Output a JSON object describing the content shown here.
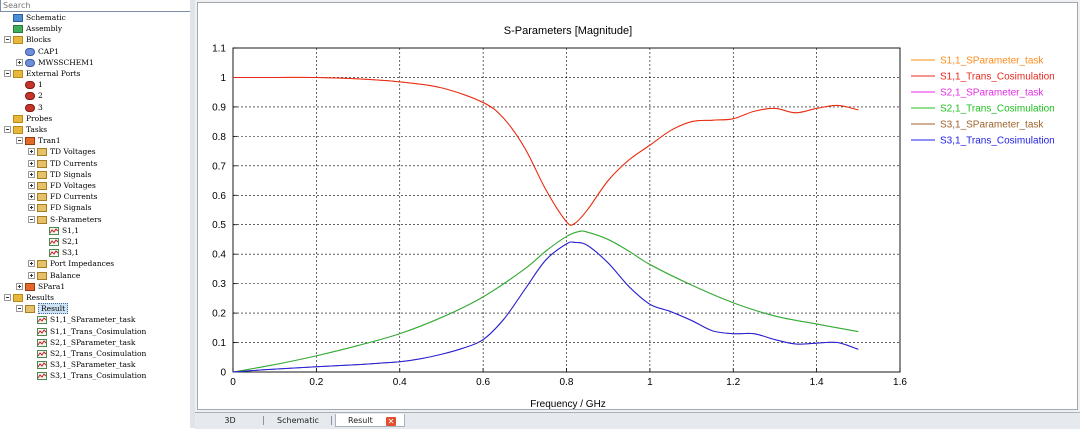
{
  "search": {
    "placeholder": "Search"
  },
  "tree": [
    {
      "id": "schematic",
      "label": "Schematic",
      "depth": 0,
      "icon": "schematic-icon",
      "exp": null
    },
    {
      "id": "assembly",
      "label": "Assembly",
      "depth": 0,
      "icon": "assembly-icon",
      "exp": null
    },
    {
      "id": "blocks",
      "label": "Blocks",
      "depth": 0,
      "icon": "folder-icon",
      "exp": "minus"
    },
    {
      "id": "cap1",
      "label": "CAP1",
      "depth": 1,
      "icon": "component-icon",
      "exp": null
    },
    {
      "id": "mwsschem1",
      "label": "MWSSCHEM1",
      "depth": 1,
      "icon": "component-icon",
      "exp": "plus"
    },
    {
      "id": "external-ports",
      "label": "External Ports",
      "depth": 0,
      "icon": "folder-icon",
      "exp": "minus"
    },
    {
      "id": "port-1",
      "label": "1",
      "depth": 1,
      "icon": "port-icon",
      "exp": null
    },
    {
      "id": "port-2",
      "label": "2",
      "depth": 1,
      "icon": "port-icon",
      "exp": null
    },
    {
      "id": "port-3",
      "label": "3",
      "depth": 1,
      "icon": "port-icon",
      "exp": null
    },
    {
      "id": "probes",
      "label": "Probes",
      "depth": 0,
      "icon": "folder-icon",
      "exp": null
    },
    {
      "id": "tasks",
      "label": "Tasks",
      "depth": 0,
      "icon": "folder-icon",
      "exp": "minus"
    },
    {
      "id": "tran1",
      "label": "Tran1",
      "depth": 1,
      "icon": "task-icon",
      "exp": "minus"
    },
    {
      "id": "td-voltages",
      "label": "TD Voltages",
      "depth": 2,
      "icon": "result-folder-icon",
      "exp": "plus"
    },
    {
      "id": "td-currents",
      "label": "TD Currents",
      "depth": 2,
      "icon": "result-folder-icon",
      "exp": "plus"
    },
    {
      "id": "td-signals",
      "label": "TD Signals",
      "depth": 2,
      "icon": "result-folder-icon",
      "exp": "plus"
    },
    {
      "id": "fd-voltages",
      "label": "FD Voltages",
      "depth": 2,
      "icon": "result-folder-icon",
      "exp": "plus"
    },
    {
      "id": "fd-currents",
      "label": "FD Currents",
      "depth": 2,
      "icon": "result-folder-icon",
      "exp": "plus"
    },
    {
      "id": "fd-signals",
      "label": "FD Signals",
      "depth": 2,
      "icon": "result-folder-icon",
      "exp": "plus"
    },
    {
      "id": "s-parameters",
      "label": "S-Parameters",
      "depth": 2,
      "icon": "result-folder-icon",
      "exp": "minus"
    },
    {
      "id": "s11",
      "label": "S1,1",
      "depth": 3,
      "icon": "curve-icon",
      "exp": null
    },
    {
      "id": "s21",
      "label": "S2,1",
      "depth": 3,
      "icon": "curve-icon",
      "exp": null
    },
    {
      "id": "s31",
      "label": "S3,1",
      "depth": 3,
      "icon": "curve-icon",
      "exp": null
    },
    {
      "id": "port-impedances",
      "label": "Port Impedances",
      "depth": 2,
      "icon": "result-folder-icon",
      "exp": "plus"
    },
    {
      "id": "balance",
      "label": "Balance",
      "depth": 2,
      "icon": "result-folder-icon",
      "exp": "plus"
    },
    {
      "id": "spara1",
      "label": "SPara1",
      "depth": 1,
      "icon": "task-icon",
      "exp": "plus"
    },
    {
      "id": "results",
      "label": "Results",
      "depth": 0,
      "icon": "folder-icon",
      "exp": "minus"
    },
    {
      "id": "result",
      "label": "Result",
      "depth": 1,
      "icon": "result-folder-icon",
      "exp": "minus",
      "selected": true
    },
    {
      "id": "r-s11-task",
      "label": "S1,1_SParameter_task",
      "depth": 2,
      "icon": "curve-icon",
      "exp": null
    },
    {
      "id": "r-s11-cosim",
      "label": "S1,1_Trans_Cosimulation",
      "depth": 2,
      "icon": "curve-icon",
      "exp": null
    },
    {
      "id": "r-s21-task",
      "label": "S2,1_SParameter_task",
      "depth": 2,
      "icon": "curve-icon",
      "exp": null
    },
    {
      "id": "r-s21-cosim",
      "label": "S2,1_Trans_Cosimulation",
      "depth": 2,
      "icon": "curve-icon",
      "exp": null
    },
    {
      "id": "r-s31-task",
      "label": "S3,1_SParameter_task",
      "depth": 2,
      "icon": "curve-icon",
      "exp": null
    },
    {
      "id": "r-s31-cosim",
      "label": "S3,1_Trans_Cosimulation",
      "depth": 2,
      "icon": "curve-icon",
      "exp": null
    }
  ],
  "tabs": [
    {
      "id": "3d",
      "label": "3D"
    },
    {
      "id": "schematic",
      "label": "Schematic"
    },
    {
      "id": "result",
      "label": "Result",
      "active": true
    }
  ],
  "colors": {
    "folder": "#e8b83a",
    "selection": "#cfe3f7",
    "grid": "#000000"
  },
  "chart_data": {
    "type": "line",
    "title": "S-Parameters [Magnitude]",
    "xlabel": "Frequency / GHz",
    "ylabel": "",
    "xlim": [
      0,
      1.6
    ],
    "ylim": [
      0,
      1.1
    ],
    "xticks": [
      "0",
      "0.2",
      "0.4",
      "0.6",
      "0.8",
      "1",
      "1.2",
      "1.4",
      "1.6"
    ],
    "yticks": [
      "0",
      "0.1",
      "0.2",
      "0.3",
      "0.4",
      "0.5",
      "0.6",
      "0.7",
      "0.8",
      "0.9",
      "1",
      "1.1"
    ],
    "grid": true,
    "legend_position": "right",
    "series": [
      {
        "name": "S1,1_SParameter_task",
        "color": "#ff8c1a",
        "x": [
          0,
          0.1,
          0.2,
          0.3,
          0.4,
          0.5,
          0.6,
          0.65,
          0.7,
          0.75,
          0.8,
          0.82,
          0.85,
          0.9,
          0.95,
          1.0,
          1.05,
          1.1,
          1.15,
          1.2,
          1.25,
          1.3,
          1.35,
          1.4,
          1.45,
          1.5
        ],
        "y": [
          1,
          1,
          1,
          0.995,
          0.985,
          0.965,
          0.915,
          0.86,
          0.76,
          0.62,
          0.51,
          0.505,
          0.55,
          0.65,
          0.72,
          0.77,
          0.82,
          0.85,
          0.855,
          0.86,
          0.885,
          0.895,
          0.88,
          0.895,
          0.905,
          0.89
        ]
      },
      {
        "name": "S1,1_Trans_Cosimulation",
        "color": "#e8281c",
        "x": [
          0,
          0.1,
          0.2,
          0.3,
          0.4,
          0.5,
          0.6,
          0.65,
          0.7,
          0.75,
          0.8,
          0.82,
          0.85,
          0.9,
          0.95,
          1.0,
          1.05,
          1.1,
          1.15,
          1.2,
          1.25,
          1.3,
          1.35,
          1.4,
          1.45,
          1.5
        ],
        "y": [
          1,
          1,
          1,
          0.995,
          0.985,
          0.965,
          0.915,
          0.86,
          0.76,
          0.62,
          0.51,
          0.505,
          0.55,
          0.65,
          0.72,
          0.77,
          0.82,
          0.85,
          0.855,
          0.86,
          0.885,
          0.895,
          0.88,
          0.895,
          0.905,
          0.89
        ]
      },
      {
        "name": "S2,1_SParameter_task",
        "color": "#e62ce6",
        "x": [
          0,
          0.1,
          0.2,
          0.3,
          0.4,
          0.5,
          0.6,
          0.7,
          0.75,
          0.8,
          0.83,
          0.85,
          0.9,
          0.95,
          1.0,
          1.1,
          1.2,
          1.3,
          1.4,
          1.5
        ],
        "y": [
          0,
          0.025,
          0.055,
          0.09,
          0.13,
          0.185,
          0.255,
          0.35,
          0.41,
          0.46,
          0.477,
          0.475,
          0.45,
          0.41,
          0.365,
          0.295,
          0.235,
          0.19,
          0.163,
          0.137
        ]
      },
      {
        "name": "S2,1_Trans_Cosimulation",
        "color": "#1fbf1f",
        "x": [
          0,
          0.1,
          0.2,
          0.3,
          0.4,
          0.5,
          0.6,
          0.7,
          0.75,
          0.8,
          0.83,
          0.85,
          0.9,
          0.95,
          1.0,
          1.1,
          1.2,
          1.3,
          1.4,
          1.5
        ],
        "y": [
          0,
          0.025,
          0.055,
          0.09,
          0.13,
          0.185,
          0.255,
          0.35,
          0.41,
          0.46,
          0.477,
          0.475,
          0.45,
          0.41,
          0.365,
          0.295,
          0.235,
          0.19,
          0.163,
          0.137
        ]
      },
      {
        "name": "S3,1_SParameter_task",
        "color": "#a0622a",
        "x": [
          0,
          0.1,
          0.2,
          0.3,
          0.35,
          0.4,
          0.45,
          0.5,
          0.55,
          0.6,
          0.65,
          0.7,
          0.75,
          0.8,
          0.82,
          0.85,
          0.9,
          0.95,
          1.0,
          1.05,
          1.1,
          1.15,
          1.2,
          1.25,
          1.3,
          1.35,
          1.4,
          1.45,
          1.5
        ],
        "y": [
          0,
          0.01,
          0.018,
          0.025,
          0.03,
          0.035,
          0.045,
          0.06,
          0.08,
          0.11,
          0.18,
          0.28,
          0.38,
          0.435,
          0.44,
          0.43,
          0.37,
          0.29,
          0.23,
          0.205,
          0.175,
          0.14,
          0.13,
          0.13,
          0.11,
          0.095,
          0.098,
          0.1,
          0.077
        ]
      },
      {
        "name": "S3,1_Trans_Cosimulation",
        "color": "#2020e6",
        "x": [
          0,
          0.1,
          0.2,
          0.3,
          0.35,
          0.4,
          0.45,
          0.5,
          0.55,
          0.6,
          0.65,
          0.7,
          0.75,
          0.8,
          0.82,
          0.85,
          0.9,
          0.95,
          1.0,
          1.05,
          1.1,
          1.15,
          1.2,
          1.25,
          1.3,
          1.35,
          1.4,
          1.45,
          1.5
        ],
        "y": [
          0,
          0.01,
          0.018,
          0.025,
          0.03,
          0.035,
          0.045,
          0.06,
          0.08,
          0.11,
          0.18,
          0.28,
          0.38,
          0.435,
          0.44,
          0.43,
          0.37,
          0.29,
          0.23,
          0.205,
          0.175,
          0.14,
          0.13,
          0.13,
          0.11,
          0.095,
          0.098,
          0.1,
          0.077
        ]
      }
    ]
  }
}
